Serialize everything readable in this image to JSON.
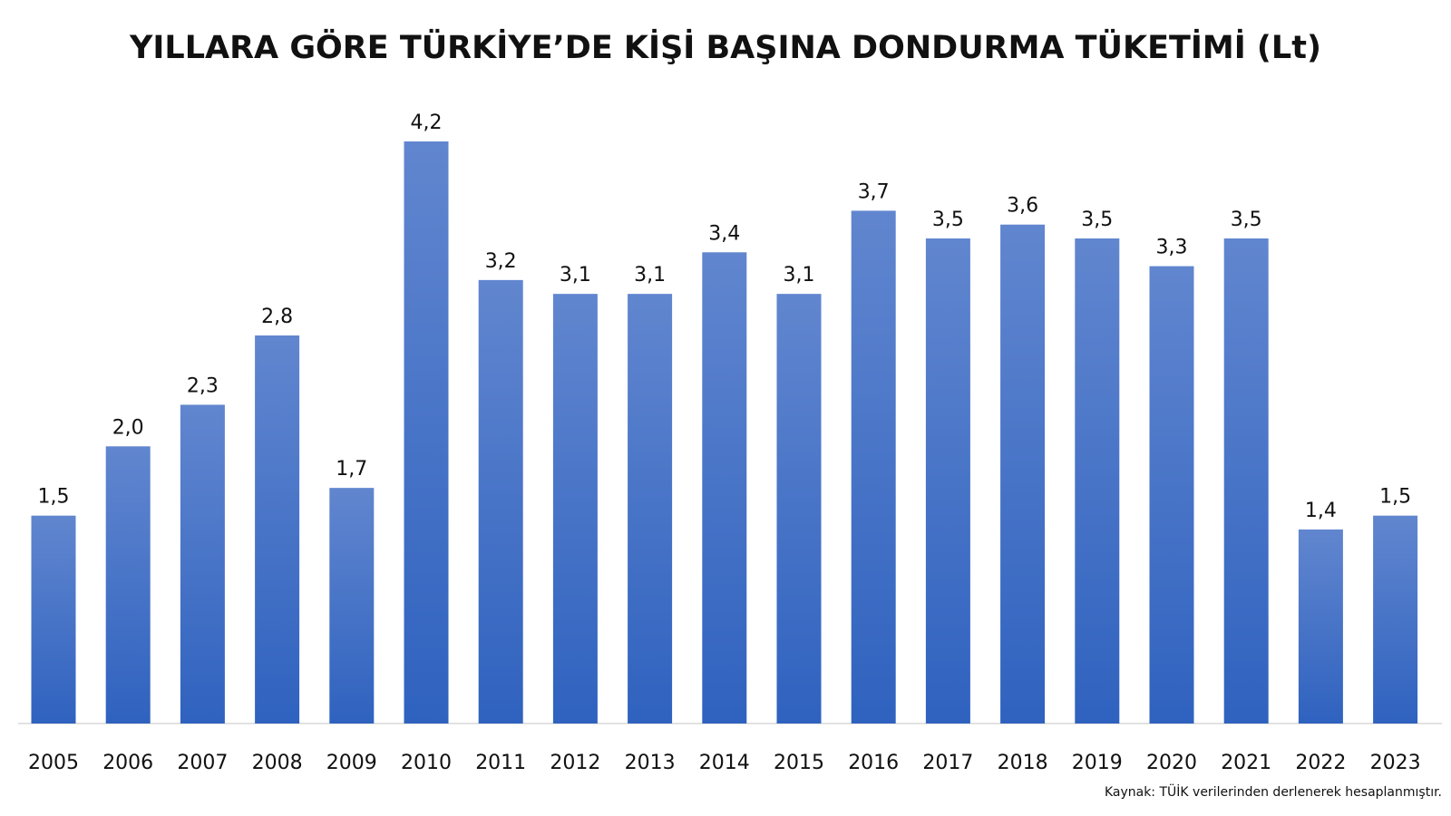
{
  "chart_data": {
    "type": "bar",
    "title": "YILLARA GÖRE TÜRKİYE’DE KİŞİ BAŞINA DONDURMA TÜKETİMİ (Lt)",
    "categories": [
      "2005",
      "2006",
      "2007",
      "2008",
      "2009",
      "2010",
      "2011",
      "2012",
      "2013",
      "2014",
      "2015",
      "2016",
      "2017",
      "2018",
      "2019",
      "2020",
      "2021",
      "2022",
      "2023"
    ],
    "values": [
      1.5,
      2.0,
      2.3,
      2.8,
      1.7,
      4.2,
      3.2,
      3.1,
      3.1,
      3.4,
      3.1,
      3.7,
      3.5,
      3.6,
      3.5,
      3.3,
      3.5,
      1.4,
      1.5
    ],
    "value_labels": [
      "1,5",
      "2,0",
      "2,3",
      "2,8",
      "1,7",
      "4,2",
      "3,2",
      "3,1",
      "3,1",
      "3,4",
      "3,1",
      "3,7",
      "3,5",
      "3,6",
      "3,5",
      "3,3",
      "3,5",
      "1,4",
      "1,5"
    ],
    "source": "Kaynak: TÜİK verilerinden derlenerek hesaplanmıştır."
  }
}
